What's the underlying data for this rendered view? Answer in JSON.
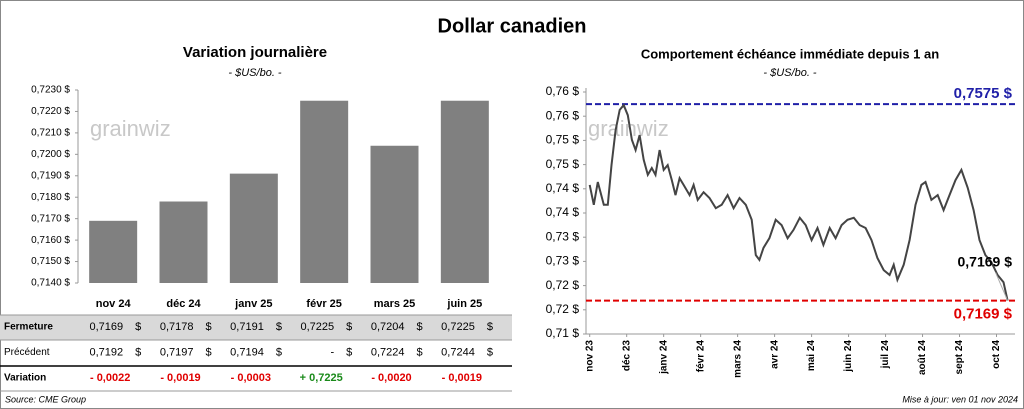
{
  "title": "Dollar canadien",
  "chart_data": [
    {
      "type": "bar",
      "title": "Variation journalière",
      "subtitle": "- $US/bo. -",
      "watermark": "grainwiz",
      "categories": [
        "nov 24",
        "déc 24",
        "janv 25",
        "févr 25",
        "mars 25",
        "juin 25"
      ],
      "values": [
        0.7169,
        0.7178,
        0.7191,
        0.7225,
        0.7204,
        0.7225
      ],
      "color": "#808080",
      "ylim": [
        0.714,
        0.723
      ],
      "yticks": [
        {
          "value": 0.714,
          "label": "0,7140 $"
        },
        {
          "value": 0.715,
          "label": "0,7150 $"
        },
        {
          "value": 0.716,
          "label": "0,7160 $"
        },
        {
          "value": 0.717,
          "label": "0,7170 $"
        },
        {
          "value": 0.718,
          "label": "0,7180 $"
        },
        {
          "value": 0.719,
          "label": "0,7190 $"
        },
        {
          "value": 0.72,
          "label": "0,7200 $"
        },
        {
          "value": 0.721,
          "label": "0,7210 $"
        },
        {
          "value": 0.722,
          "label": "0,7220 $"
        },
        {
          "value": 0.723,
          "label": "0,7230 $"
        }
      ]
    },
    {
      "type": "line",
      "title": "Comportement échéance immédiate depuis 1 an",
      "subtitle": "- $US/bo. -",
      "watermark": "grainwiz",
      "x": [
        0,
        0.11,
        0.22,
        0.38,
        0.49,
        0.59,
        0.7,
        0.81,
        0.92,
        1.03,
        1.14,
        1.24,
        1.35,
        1.46,
        1.57,
        1.68,
        1.78,
        1.89,
        2.0,
        2.11,
        2.22,
        2.32,
        2.43,
        2.54,
        2.7,
        2.81,
        2.92,
        3.08,
        3.24,
        3.41,
        3.57,
        3.73,
        3.89,
        4.05,
        4.22,
        4.38,
        4.49,
        4.59,
        4.7,
        4.86,
        5.03,
        5.19,
        5.35,
        5.51,
        5.68,
        5.84,
        6.0,
        6.16,
        6.32,
        6.49,
        6.65,
        6.81,
        6.97,
        7.14,
        7.3,
        7.46,
        7.62,
        7.78,
        7.95,
        8.11,
        8.22,
        8.32,
        8.49,
        8.65,
        8.81,
        8.97,
        9.08,
        9.24,
        9.41,
        9.57,
        9.73,
        9.89,
        10.05,
        10.22,
        10.38,
        10.54,
        10.7,
        10.86,
        11.03,
        11.19,
        11.3
      ],
      "series": [
        {
          "color": "#444444",
          "values": [
            0.7408,
            0.7367,
            0.7414,
            0.7367,
            0.7367,
            0.7449,
            0.7521,
            0.7563,
            0.7573,
            0.7552,
            0.7501,
            0.748,
            0.7511,
            0.746,
            0.7429,
            0.7443,
            0.7429,
            0.748,
            0.7439,
            0.7449,
            0.7418,
            0.7387,
            0.7422,
            0.7408,
            0.7387,
            0.7408,
            0.7377,
            0.7393,
            0.7381,
            0.736,
            0.7367,
            0.7387,
            0.736,
            0.7381,
            0.7367,
            0.7336,
            0.7263,
            0.7253,
            0.7278,
            0.7298,
            0.7336,
            0.7325,
            0.7298,
            0.7315,
            0.734,
            0.7325,
            0.7294,
            0.7319,
            0.7284,
            0.7319,
            0.7298,
            0.7325,
            0.7336,
            0.734,
            0.7325,
            0.7319,
            0.7294,
            0.7257,
            0.7232,
            0.7222,
            0.7243,
            0.7212,
            0.7243,
            0.7294,
            0.7367,
            0.7408,
            0.7414,
            0.7377,
            0.7387,
            0.7356,
            0.7387,
            0.7418,
            0.7439,
            0.7402,
            0.7356,
            0.7294,
            0.7263,
            0.7249,
            0.7222,
            0.7207,
            0.7169
          ]
        }
      ],
      "end_label": "0,7169 $",
      "reference_lines": [
        {
          "value": 0.7575,
          "label": "0,7575 $",
          "color": "#1f1fa8"
        },
        {
          "value": 0.7169,
          "label": "0,7169 $",
          "color": "#e00000"
        }
      ],
      "xlim": [
        -0.1,
        11.5
      ],
      "xticks": [
        {
          "value": 0,
          "label": "nov 23"
        },
        {
          "value": 1,
          "label": "déc 23"
        },
        {
          "value": 2,
          "label": "janv 24"
        },
        {
          "value": 3,
          "label": "févr 24"
        },
        {
          "value": 4,
          "label": "mars 24"
        },
        {
          "value": 5,
          "label": "avr 24"
        },
        {
          "value": 6,
          "label": "mai 24"
        },
        {
          "value": 7,
          "label": "juin 24"
        },
        {
          "value": 8,
          "label": "juil 24"
        },
        {
          "value": 9,
          "label": "août 24"
        },
        {
          "value": 10,
          "label": "sept 24"
        },
        {
          "value": 11,
          "label": "oct 24"
        }
      ],
      "ylim": [
        0.71,
        0.76
      ],
      "yticks": [
        {
          "value": 0.71,
          "label": "0,71 $"
        },
        {
          "value": 0.715,
          "label": "0,72 $"
        },
        {
          "value": 0.72,
          "label": "0,72 $"
        },
        {
          "value": 0.725,
          "label": "0,73 $"
        },
        {
          "value": 0.73,
          "label": "0,73 $"
        },
        {
          "value": 0.735,
          "label": "0,74 $"
        },
        {
          "value": 0.74,
          "label": "0,74 $"
        },
        {
          "value": 0.745,
          "label": "0,75 $"
        },
        {
          "value": 0.75,
          "label": "0,75 $"
        },
        {
          "value": 0.755,
          "label": "0,76 $"
        },
        {
          "value": 0.76,
          "label": "0,76 $"
        }
      ]
    }
  ],
  "table": {
    "rows": [
      {
        "label": "Fermeture",
        "cells": [
          {
            "value": "0,7169",
            "unit": "$"
          },
          {
            "value": "0,7178",
            "unit": "$"
          },
          {
            "value": "0,7191",
            "unit": "$"
          },
          {
            "value": "0,7225",
            "unit": "$"
          },
          {
            "value": "0,7204",
            "unit": "$"
          },
          {
            "value": "0,7225",
            "unit": "$"
          }
        ]
      },
      {
        "label": "Précédent",
        "cells": [
          {
            "value": "0,7192",
            "unit": "$"
          },
          {
            "value": "0,7197",
            "unit": "$"
          },
          {
            "value": "0,7194",
            "unit": "$"
          },
          {
            "value": "-",
            "unit": "$"
          },
          {
            "value": "0,7224",
            "unit": "$"
          },
          {
            "value": "0,7244",
            "unit": "$"
          }
        ]
      },
      {
        "label": "Variation",
        "cells": [
          {
            "value": "- 0,0022"
          },
          {
            "value": "- 0,0019"
          },
          {
            "value": "- 0,0003"
          },
          {
            "value": "+ 0,7225"
          },
          {
            "value": "- 0,0020"
          },
          {
            "value": "- 0,0019"
          }
        ]
      }
    ]
  },
  "source": "Source: CME Group",
  "updated": "Mise à jour: ven 01 nov 2024"
}
